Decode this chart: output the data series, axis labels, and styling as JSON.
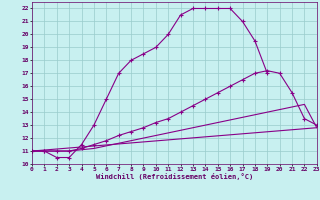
{
  "xlabel": "Windchill (Refroidissement éolien,°C)",
  "bg_color": "#c8f0f0",
  "line_color": "#880088",
  "grid_color": "#99cccc",
  "xlim": [
    0,
    23
  ],
  "ylim": [
    10,
    22.5
  ],
  "xticks": [
    0,
    1,
    2,
    3,
    4,
    5,
    6,
    7,
    8,
    9,
    10,
    11,
    12,
    13,
    14,
    15,
    16,
    17,
    18,
    19,
    20,
    21,
    22,
    23
  ],
  "yticks": [
    10,
    11,
    12,
    13,
    14,
    15,
    16,
    17,
    18,
    19,
    20,
    21,
    22
  ],
  "series1_x": [
    0,
    1,
    2,
    3,
    4,
    5,
    6,
    7,
    8,
    9,
    10,
    11,
    12,
    13,
    14,
    15,
    16,
    17,
    18,
    19
  ],
  "series1_y": [
    11,
    11,
    10.5,
    10.5,
    11.5,
    13,
    15,
    17,
    18,
    18.5,
    19,
    20,
    21.5,
    22,
    22,
    22,
    22,
    21,
    19.5,
    17
  ],
  "series2_x": [
    0,
    1,
    2,
    3,
    4,
    5,
    6,
    7,
    8,
    9,
    10,
    11,
    12,
    13,
    14,
    15,
    16,
    17,
    18,
    19,
    20,
    21,
    22,
    23
  ],
  "series2_y": [
    11,
    11,
    11,
    11,
    11.2,
    11.5,
    11.8,
    12.2,
    12.5,
    12.8,
    13.2,
    13.5,
    14,
    14.5,
    15,
    15.5,
    16,
    16.5,
    17,
    17.2,
    17,
    15.5,
    13.5,
    13
  ],
  "series3_x": [
    0,
    1,
    2,
    3,
    4,
    5,
    6,
    7,
    8,
    9,
    10,
    11,
    12,
    13,
    14,
    15,
    16,
    17,
    18,
    19,
    20,
    21,
    22,
    23
  ],
  "series3_y": [
    11,
    11,
    11,
    11,
    11.1,
    11.2,
    11.4,
    11.6,
    11.8,
    12.0,
    12.2,
    12.4,
    12.6,
    12.8,
    13.0,
    13.2,
    13.4,
    13.6,
    13.8,
    14.0,
    14.2,
    14.4,
    14.6,
    12.8
  ],
  "series4_x": [
    0,
    23
  ],
  "series4_y": [
    11,
    12.8
  ],
  "marker": "+"
}
